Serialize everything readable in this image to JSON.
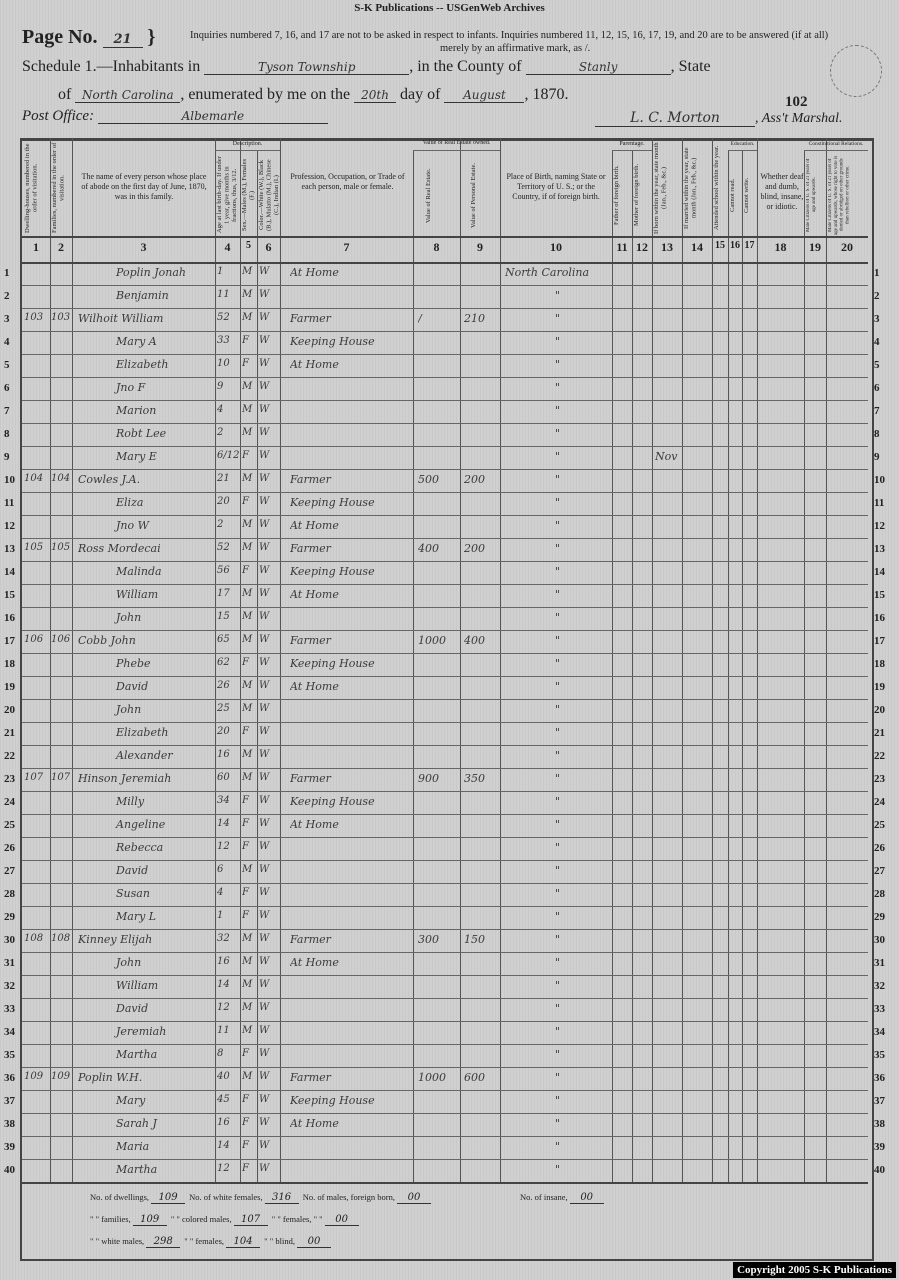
{
  "header": {
    "archive_title": "S-K Publications -- USGenWeb Archives",
    "page_label": "Page No.",
    "page_number": "21",
    "inquiry_note_1": "Inquiries numbered 7, 16, and 17 are not to be asked in respect to infants.  Inquiries numbered 11, 12, 15, 16, 17, 19, and 20 are to be answered (if at all)",
    "inquiry_note_2": "merely by an affirmative mark, as /.",
    "schedule_prefix": "Schedule 1.—Inhabitants in",
    "township": "Tyson Township",
    "county_label": ", in the County of",
    "county": "Stanly",
    "state_label": ", State",
    "of_label": "of",
    "state": "North Carolina",
    "enumerated_label": ", enumerated by me on the",
    "day": "20th",
    "day_of_label": "day of",
    "month": "August",
    "year": ", 1870.",
    "post_office_label": "Post Office:",
    "post_office": "Albemarle",
    "marshal_name": "L. C. Morton",
    "marshal_label": ", Ass't Marshal.",
    "sheet_number": "102"
  },
  "columns": {
    "c1": "Dwelling-houses, numbered in the order of visitation.",
    "c2": "Families, numbered in the order of visitation.",
    "c3": "The name of every person whose place of abode on the first day of June, 1870, was in this family.",
    "description_group": "Description.",
    "c4": "Age at last birth-day. If under 1 year, give months in fractions, thus, 3/12.",
    "c5": "Sex.—Males (M.), Females (F.)",
    "c6": "Color.—White (W.), Black (B.), Mulatto (M.), Chinese (C.), Indian (I.)",
    "c7": "Profession, Occupation, or Trade of each person, male or female.",
    "value_group": "Value of Real Estate owned.",
    "c8": "Value of Real Estate.",
    "c9": "Value of Personal Estate.",
    "c10": "Place of Birth, naming State or Territory of U. S.; or the Country, if of foreign birth.",
    "parentage_group": "Parentage.",
    "c11": "Father of foreign birth.",
    "c12": "Mother of foreign birth.",
    "c13": "If born within the year, state month (Jan., Feb., &c.)",
    "c14": "If married within the year, state month (Jan., Feb., &c.)",
    "c15": "Attended school within the year.",
    "education_group": "Education.",
    "c16": "Cannot read.",
    "c17": "Cannot write.",
    "c18": "Whether deaf and dumb, blind, insane, or idiotic.",
    "constitutional_group": "Constitutional Relations.",
    "c19": "Male Citizens of U. S. of 21 years of age and upwards.",
    "c20": "Male Citizens of U. S. of 21 years of age and upwards, whose right to vote is denied or abridged on other grounds than rebellion or other crime.",
    "numbers": [
      "1",
      "2",
      "3",
      "4",
      "5",
      "6",
      "7",
      "8",
      "9",
      "10",
      "11",
      "12",
      "13",
      "14",
      "15",
      "16",
      "17",
      "18",
      "19",
      "20"
    ]
  },
  "rows": [
    {
      "n": "1",
      "dw": "",
      "fam": "",
      "name": "Poplin Jonah",
      "age": "1",
      "sex": "M",
      "color": "W",
      "occ": "At Home",
      "real": "",
      "pers": "",
      "birth": "North Carolina",
      "born_month": ""
    },
    {
      "n": "2",
      "dw": "",
      "fam": "",
      "name": "Benjamin",
      "age": "11",
      "sex": "M",
      "color": "W",
      "occ": "",
      "real": "",
      "pers": "",
      "birth": "\"",
      "born_month": ""
    },
    {
      "n": "3",
      "dw": "103",
      "fam": "103",
      "name": "Wilhoit William",
      "age": "52",
      "sex": "M",
      "color": "W",
      "occ": "Farmer",
      "real": "/",
      "pers": "210",
      "birth": "\"",
      "born_month": ""
    },
    {
      "n": "4",
      "dw": "",
      "fam": "",
      "name": "Mary A",
      "age": "33",
      "sex": "F",
      "color": "W",
      "occ": "Keeping House",
      "real": "",
      "pers": "",
      "birth": "\"",
      "born_month": ""
    },
    {
      "n": "5",
      "dw": "",
      "fam": "",
      "name": "Elizabeth",
      "age": "10",
      "sex": "F",
      "color": "W",
      "occ": "At Home",
      "real": "",
      "pers": "",
      "birth": "\"",
      "born_month": ""
    },
    {
      "n": "6",
      "dw": "",
      "fam": "",
      "name": "Jno F",
      "age": "9",
      "sex": "M",
      "color": "W",
      "occ": "",
      "real": "",
      "pers": "",
      "birth": "\"",
      "born_month": ""
    },
    {
      "n": "7",
      "dw": "",
      "fam": "",
      "name": "Marion",
      "age": "4",
      "sex": "M",
      "color": "W",
      "occ": "",
      "real": "",
      "pers": "",
      "birth": "\"",
      "born_month": ""
    },
    {
      "n": "8",
      "dw": "",
      "fam": "",
      "name": "Robt Lee",
      "age": "2",
      "sex": "M",
      "color": "W",
      "occ": "",
      "real": "",
      "pers": "",
      "birth": "\"",
      "born_month": ""
    },
    {
      "n": "9",
      "dw": "",
      "fam": "",
      "name": "Mary E",
      "age": "6/12",
      "sex": "F",
      "color": "W",
      "occ": "",
      "real": "",
      "pers": "",
      "birth": "\"",
      "born_month": "Nov"
    },
    {
      "n": "10",
      "dw": "104",
      "fam": "104",
      "name": "Cowles J.A.",
      "age": "21",
      "sex": "M",
      "color": "W",
      "occ": "Farmer",
      "real": "500",
      "pers": "200",
      "birth": "\"",
      "born_month": ""
    },
    {
      "n": "11",
      "dw": "",
      "fam": "",
      "name": "Eliza",
      "age": "20",
      "sex": "F",
      "color": "W",
      "occ": "Keeping House",
      "real": "",
      "pers": "",
      "birth": "\"",
      "born_month": ""
    },
    {
      "n": "12",
      "dw": "",
      "fam": "",
      "name": "Jno W",
      "age": "2",
      "sex": "M",
      "color": "W",
      "occ": "At Home",
      "real": "",
      "pers": "",
      "birth": "\"",
      "born_month": ""
    },
    {
      "n": "13",
      "dw": "105",
      "fam": "105",
      "name": "Ross Mordecai",
      "age": "52",
      "sex": "M",
      "color": "W",
      "occ": "Farmer",
      "real": "400",
      "pers": "200",
      "birth": "\"",
      "born_month": ""
    },
    {
      "n": "14",
      "dw": "",
      "fam": "",
      "name": "Malinda",
      "age": "56",
      "sex": "F",
      "color": "W",
      "occ": "Keeping House",
      "real": "",
      "pers": "",
      "birth": "\"",
      "born_month": ""
    },
    {
      "n": "15",
      "dw": "",
      "fam": "",
      "name": "William",
      "age": "17",
      "sex": "M",
      "color": "W",
      "occ": "At Home",
      "real": "",
      "pers": "",
      "birth": "\"",
      "born_month": ""
    },
    {
      "n": "16",
      "dw": "",
      "fam": "",
      "name": "John",
      "age": "15",
      "sex": "M",
      "color": "W",
      "occ": "",
      "real": "",
      "pers": "",
      "birth": "\"",
      "born_month": ""
    },
    {
      "n": "17",
      "dw": "106",
      "fam": "106",
      "name": "Cobb John",
      "age": "65",
      "sex": "M",
      "color": "W",
      "occ": "Farmer",
      "real": "1000",
      "pers": "400",
      "birth": "\"",
      "born_month": ""
    },
    {
      "n": "18",
      "dw": "",
      "fam": "",
      "name": "Phebe",
      "age": "62",
      "sex": "F",
      "color": "W",
      "occ": "Keeping House",
      "real": "",
      "pers": "",
      "birth": "\"",
      "born_month": ""
    },
    {
      "n": "19",
      "dw": "",
      "fam": "",
      "name": "David",
      "age": "26",
      "sex": "M",
      "color": "W",
      "occ": "At Home",
      "real": "",
      "pers": "",
      "birth": "\"",
      "born_month": ""
    },
    {
      "n": "20",
      "dw": "",
      "fam": "",
      "name": "John",
      "age": "25",
      "sex": "M",
      "color": "W",
      "occ": "",
      "real": "",
      "pers": "",
      "birth": "\"",
      "born_month": ""
    },
    {
      "n": "21",
      "dw": "",
      "fam": "",
      "name": "Elizabeth",
      "age": "20",
      "sex": "F",
      "color": "W",
      "occ": "",
      "real": "",
      "pers": "",
      "birth": "\"",
      "born_month": ""
    },
    {
      "n": "22",
      "dw": "",
      "fam": "",
      "name": "Alexander",
      "age": "16",
      "sex": "M",
      "color": "W",
      "occ": "",
      "real": "",
      "pers": "",
      "birth": "\"",
      "born_month": ""
    },
    {
      "n": "23",
      "dw": "107",
      "fam": "107",
      "name": "Hinson Jeremiah",
      "age": "60",
      "sex": "M",
      "color": "W",
      "occ": "Farmer",
      "real": "900",
      "pers": "350",
      "birth": "\"",
      "born_month": ""
    },
    {
      "n": "24",
      "dw": "",
      "fam": "",
      "name": "Milly",
      "age": "34",
      "sex": "F",
      "color": "W",
      "occ": "Keeping House",
      "real": "",
      "pers": "",
      "birth": "\"",
      "born_month": ""
    },
    {
      "n": "25",
      "dw": "",
      "fam": "",
      "name": "Angeline",
      "age": "14",
      "sex": "F",
      "color": "W",
      "occ": "At Home",
      "real": "",
      "pers": "",
      "birth": "\"",
      "born_month": ""
    },
    {
      "n": "26",
      "dw": "",
      "fam": "",
      "name": "Rebecca",
      "age": "12",
      "sex": "F",
      "color": "W",
      "occ": "",
      "real": "",
      "pers": "",
      "birth": "\"",
      "born_month": ""
    },
    {
      "n": "27",
      "dw": "",
      "fam": "",
      "name": "David",
      "age": "6",
      "sex": "M",
      "color": "W",
      "occ": "",
      "real": "",
      "pers": "",
      "birth": "\"",
      "born_month": ""
    },
    {
      "n": "28",
      "dw": "",
      "fam": "",
      "name": "Susan",
      "age": "4",
      "sex": "F",
      "color": "W",
      "occ": "",
      "real": "",
      "pers": "",
      "birth": "\"",
      "born_month": ""
    },
    {
      "n": "29",
      "dw": "",
      "fam": "",
      "name": "Mary L",
      "age": "1",
      "sex": "F",
      "color": "W",
      "occ": "",
      "real": "",
      "pers": "",
      "birth": "\"",
      "born_month": ""
    },
    {
      "n": "30",
      "dw": "108",
      "fam": "108",
      "name": "Kinney Elijah",
      "age": "32",
      "sex": "M",
      "color": "W",
      "occ": "Farmer",
      "real": "300",
      "pers": "150",
      "birth": "\"",
      "born_month": ""
    },
    {
      "n": "31",
      "dw": "",
      "fam": "",
      "name": "John",
      "age": "16",
      "sex": "M",
      "color": "W",
      "occ": "At Home",
      "real": "",
      "pers": "",
      "birth": "\"",
      "born_month": ""
    },
    {
      "n": "32",
      "dw": "",
      "fam": "",
      "name": "William",
      "age": "14",
      "sex": "M",
      "color": "W",
      "occ": "",
      "real": "",
      "pers": "",
      "birth": "\"",
      "born_month": ""
    },
    {
      "n": "33",
      "dw": "",
      "fam": "",
      "name": "David",
      "age": "12",
      "sex": "M",
      "color": "W",
      "occ": "",
      "real": "",
      "pers": "",
      "birth": "\"",
      "born_month": ""
    },
    {
      "n": "34",
      "dw": "",
      "fam": "",
      "name": "Jeremiah",
      "age": "11",
      "sex": "M",
      "color": "W",
      "occ": "",
      "real": "",
      "pers": "",
      "birth": "\"",
      "born_month": ""
    },
    {
      "n": "35",
      "dw": "",
      "fam": "",
      "name": "Martha",
      "age": "8",
      "sex": "F",
      "color": "W",
      "occ": "",
      "real": "",
      "pers": "",
      "birth": "\"",
      "born_month": ""
    },
    {
      "n": "36",
      "dw": "109",
      "fam": "109",
      "name": "Poplin W.H.",
      "age": "40",
      "sex": "M",
      "color": "W",
      "occ": "Farmer",
      "real": "1000",
      "pers": "600",
      "birth": "\"",
      "born_month": ""
    },
    {
      "n": "37",
      "dw": "",
      "fam": "",
      "name": "Mary",
      "age": "45",
      "sex": "F",
      "color": "W",
      "occ": "Keeping House",
      "real": "",
      "pers": "",
      "birth": "\"",
      "born_month": ""
    },
    {
      "n": "38",
      "dw": "",
      "fam": "",
      "name": "Sarah J",
      "age": "16",
      "sex": "F",
      "color": "W",
      "occ": "At Home",
      "real": "",
      "pers": "",
      "birth": "\"",
      "born_month": ""
    },
    {
      "n": "39",
      "dw": "",
      "fam": "",
      "name": "Maria",
      "age": "14",
      "sex": "F",
      "color": "W",
      "occ": "",
      "real": "",
      "pers": "",
      "birth": "\"",
      "born_month": ""
    },
    {
      "n": "40",
      "dw": "",
      "fam": "",
      "name": "Martha",
      "age": "12",
      "sex": "F",
      "color": "W",
      "occ": "",
      "real": "",
      "pers": "",
      "birth": "\"",
      "born_month": ""
    }
  ],
  "summary": {
    "dwellings_label": "No. of dwellings,",
    "dwellings": "109",
    "white_females_label": "No. of white females,",
    "white_females": "316",
    "males_foreign_label": "No. of males, foreign born,",
    "males_foreign": "00",
    "families_label": "\" \" families,",
    "families": "109",
    "colored_males_label": "\" \" colored males,",
    "colored_males": "107",
    "females_foreign_label": "\" \" females,  \"   \"",
    "females_foreign": "00",
    "white_males_label": "\" \" white males,",
    "white_males": "298",
    "colored_females_label": "\" \"  females,",
    "colored_females": "104",
    "blind_label": "\" \" blind,",
    "blind": "00",
    "insane_label": "No. of insane,",
    "insane": "00"
  },
  "copyright": "Copyright 2005 S-K Publications"
}
